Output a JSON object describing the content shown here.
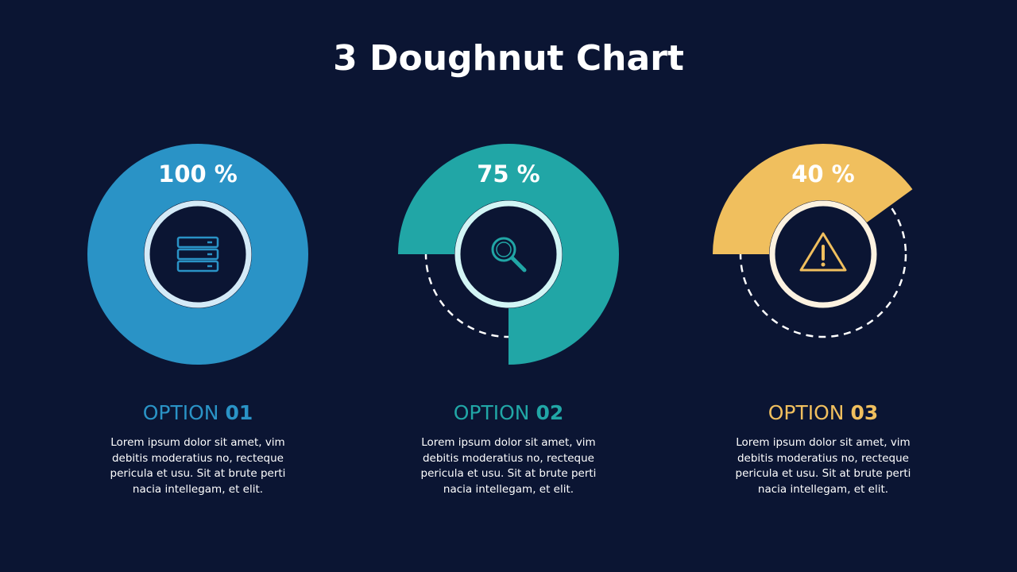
{
  "title": "3 Doughnut Chart",
  "chart_data": [
    {
      "type": "doughnut",
      "values": [
        100
      ],
      "value_labels": [
        "100 %"
      ],
      "color": "#2a93c6",
      "ring_color": "#d4eaf7",
      "option": "OPTION",
      "number": "01",
      "icon": "server",
      "description": "Lorem ipsum dolor sit amet, vim debitis moderatius no, recteque pericula et usu. Sit at brute perti nacia intellegam, et elit."
    },
    {
      "type": "doughnut",
      "values": [
        75
      ],
      "value_labels": [
        "75 %"
      ],
      "color": "#21a6a6",
      "ring_color": "#d2f5f5",
      "option": "OPTION",
      "number": "02",
      "icon": "search",
      "description": "Lorem ipsum dolor sit amet, vim debitis moderatius no, recteque pericula et usu. Sit at brute perti nacia intellegam, et elit."
    },
    {
      "type": "doughnut",
      "values": [
        40
      ],
      "value_labels": [
        "40 %"
      ],
      "color": "#f0bf5e",
      "ring_color": "#fdf2e0",
      "option": "OPTION",
      "number": "03",
      "icon": "warning",
      "description": "Lorem ipsum dolor sit amet, vim debitis moderatius no, recteque pericula et usu. Sit at brute perti nacia intellegam, et elit."
    }
  ]
}
